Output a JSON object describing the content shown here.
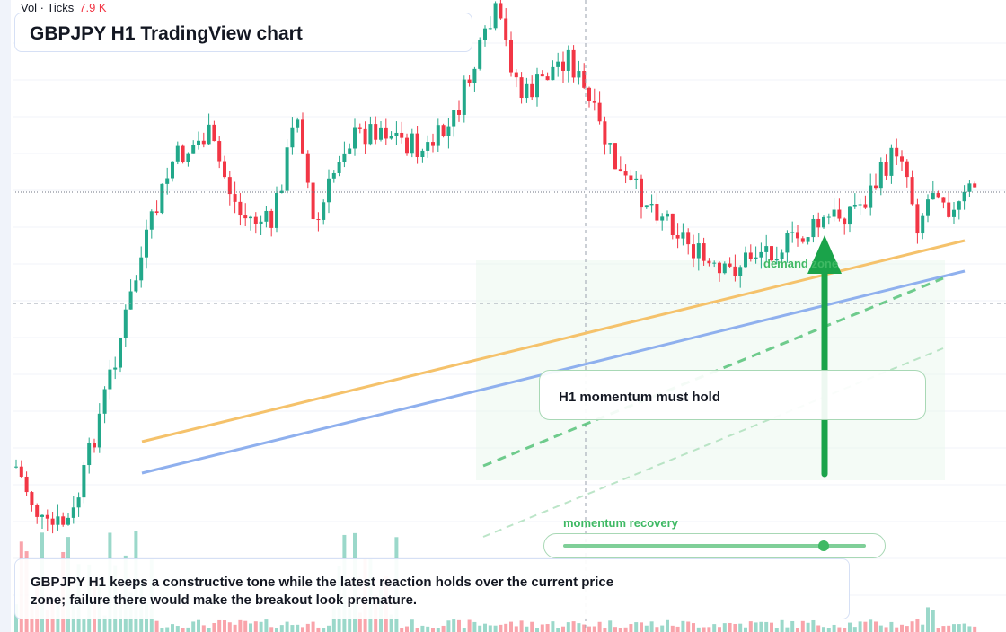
{
  "volume_legend": {
    "label": "Vol · Ticks",
    "value": "7.9 K"
  },
  "title": "GBPJPY H1 TradingView chart",
  "demand_zone_label": "demand zone",
  "callout_label": "H1 momentum must hold",
  "momentum": {
    "label": "momentum recovery",
    "level": 0.86
  },
  "note": "GBPJPY H1 keeps a constructive tone while the latest reaction holds over the current price zone; failure there would make the breakout look premature.",
  "colors": {
    "up": "#22a88a",
    "down": "#f23645",
    "accent": "#3fb964",
    "trend_orange": "#f5c26b",
    "trend_blue": "#8fb0ee"
  },
  "icons": {
    "zone_arrow": "arrow-up-icon"
  }
}
